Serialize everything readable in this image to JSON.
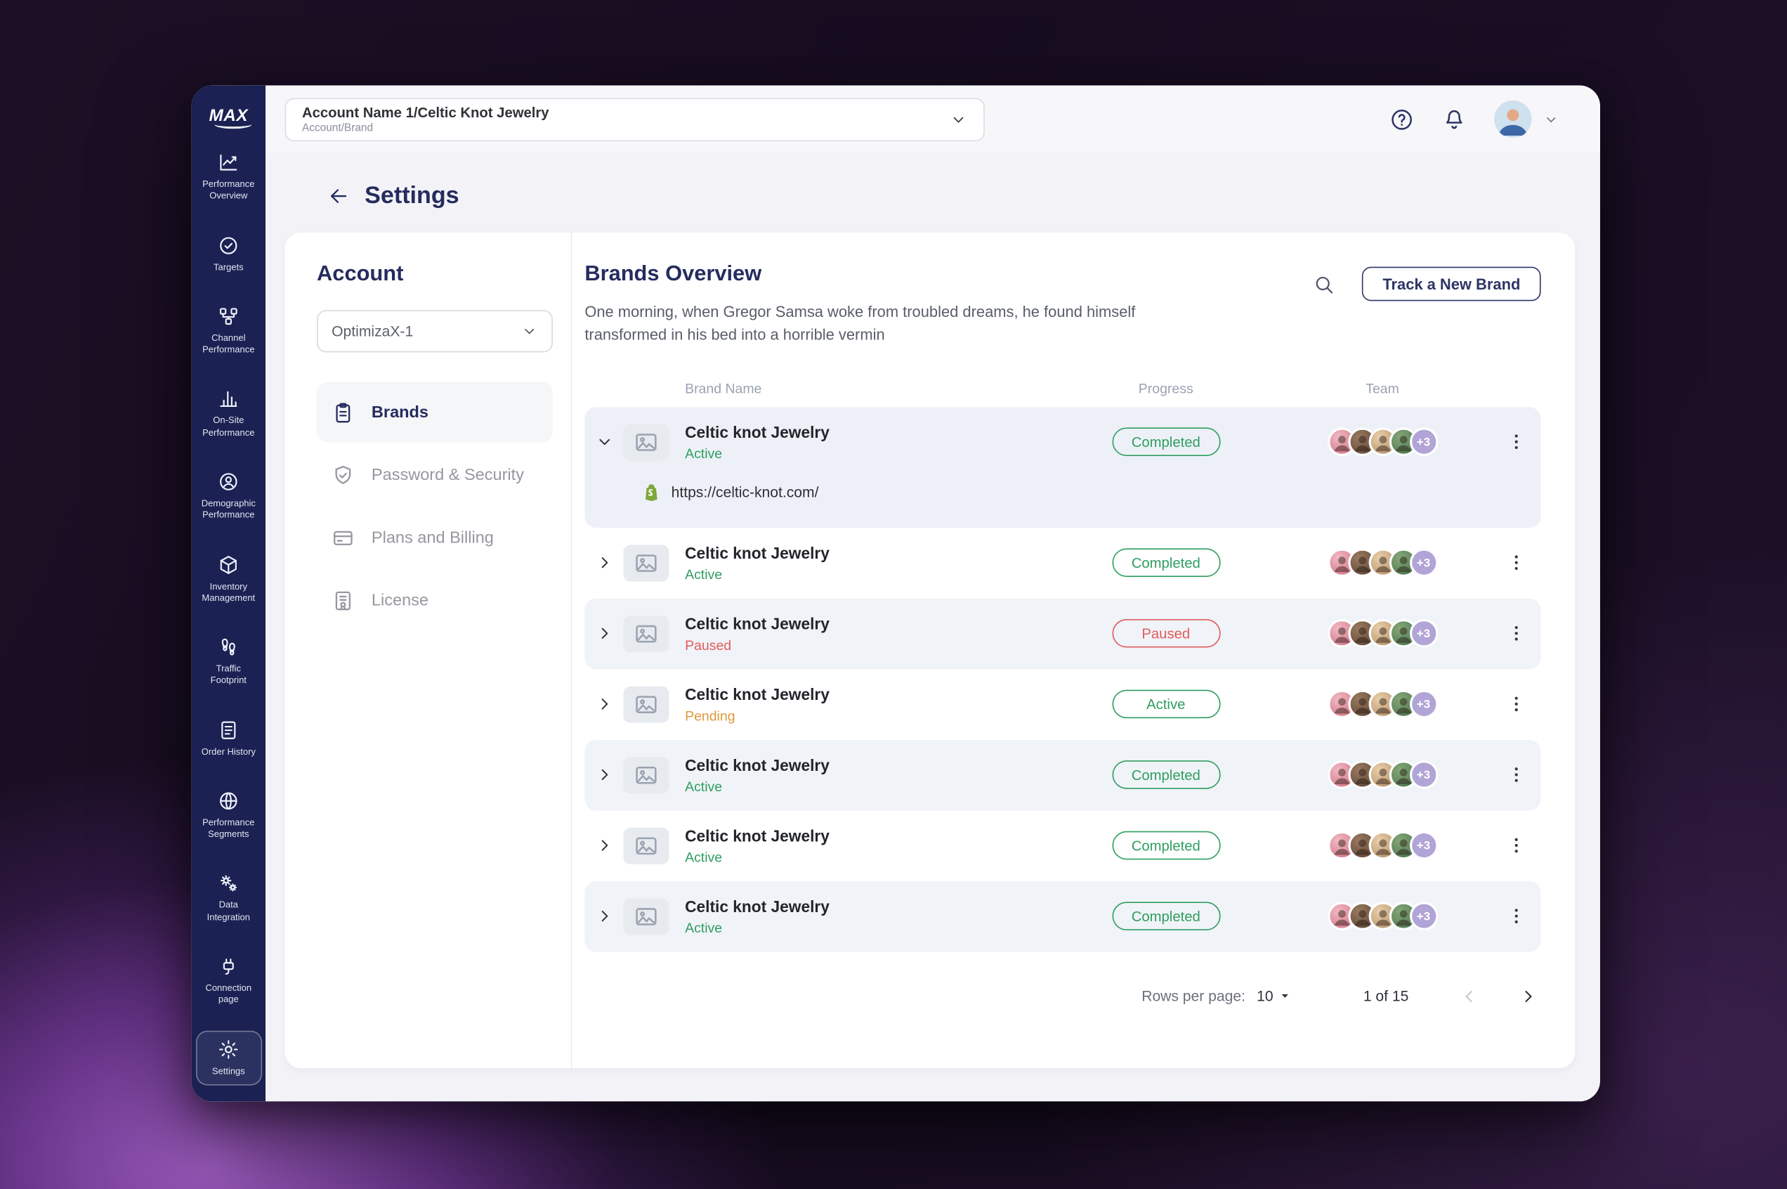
{
  "palette": {
    "navy": "#252c5e",
    "sidebar_bg": "#1b2152",
    "green": "#2f9e5f",
    "red": "#e15b5b",
    "orange": "#e0993c",
    "badge_purple": "#b1a4d6"
  },
  "sidebar": {
    "logo": "MAX",
    "items": [
      {
        "label": "Performance Overview",
        "icon": "line-chart-icon"
      },
      {
        "label": "Targets",
        "icon": "target-icon"
      },
      {
        "label": "Channel Performance",
        "icon": "nodes-icon"
      },
      {
        "label": "On-Site Performance",
        "icon": "bar-chart-icon"
      },
      {
        "label": "Demographic Performance",
        "icon": "user-circle-icon"
      },
      {
        "label": "Inventory Management",
        "icon": "box-icon"
      },
      {
        "label": "Traffic Footprint",
        "icon": "footprints-icon"
      },
      {
        "label": "Order History",
        "icon": "document-list-icon"
      },
      {
        "label": "Performance Segments",
        "icon": "segments-icon"
      },
      {
        "label": "Data Integration",
        "icon": "gears-icon"
      },
      {
        "label": "Connection page",
        "icon": "plug-icon"
      },
      {
        "label": "Settings",
        "icon": "gear-icon",
        "active": true
      }
    ]
  },
  "topbar": {
    "account_selector": {
      "title": "Account Name 1/Celtic Knot Jewelry",
      "subtitle": "Account/Brand"
    },
    "icons": {
      "help": "help-icon",
      "notifications": "bell-icon",
      "user": "user-avatar",
      "user_menu": "chevron-down-icon"
    }
  },
  "page": {
    "title": "Settings"
  },
  "account_panel": {
    "title": "Account",
    "selector_value": "OptimizaX-1",
    "menu": [
      {
        "label": "Brands",
        "icon": "clipboard-icon",
        "active": true
      },
      {
        "label": "Password & Security",
        "icon": "shield-check-icon"
      },
      {
        "label": "Plans and Billing",
        "icon": "credit-card-icon"
      },
      {
        "label": "License",
        "icon": "license-icon"
      }
    ]
  },
  "brands": {
    "title": "Brands Overview",
    "description": "One morning, when Gregor Samsa woke from troubled dreams, he found himself transformed in his bed into a horrible vermin",
    "track_button": "Track a New Brand",
    "columns": [
      "Brand Name",
      "Progress",
      "Team"
    ],
    "rows": [
      {
        "name": "Celtic knot Jewelry",
        "status": "Active",
        "status_color": "green",
        "progress": "Completed",
        "progress_color": "green",
        "team_extra": "+3",
        "expanded": true,
        "url": "https://celtic-knot.com/",
        "url_icon": "shopify-icon"
      },
      {
        "name": "Celtic knot Jewelry",
        "status": "Active",
        "status_color": "green",
        "progress": "Completed",
        "progress_color": "green",
        "team_extra": "+3"
      },
      {
        "name": "Celtic knot Jewelry",
        "status": "Paused",
        "status_color": "red",
        "progress": "Paused",
        "progress_color": "red",
        "team_extra": "+3"
      },
      {
        "name": "Celtic knot Jewelry",
        "status": "Pending",
        "status_color": "orange",
        "progress": "Active",
        "progress_color": "green",
        "team_extra": "+3"
      },
      {
        "name": "Celtic knot Jewelry",
        "status": "Active",
        "status_color": "green",
        "progress": "Completed",
        "progress_color": "green",
        "team_extra": "+3"
      },
      {
        "name": "Celtic knot Jewelry",
        "status": "Active",
        "status_color": "green",
        "progress": "Completed",
        "progress_color": "green",
        "team_extra": "+3"
      },
      {
        "name": "Celtic knot Jewelry",
        "status": "Active",
        "status_color": "green",
        "progress": "Completed",
        "progress_color": "green",
        "team_extra": "+3"
      }
    ],
    "pagination": {
      "rows_per_page_label": "Rows per page:",
      "rows_per_page": "10",
      "page_info": "1 of 15"
    }
  }
}
